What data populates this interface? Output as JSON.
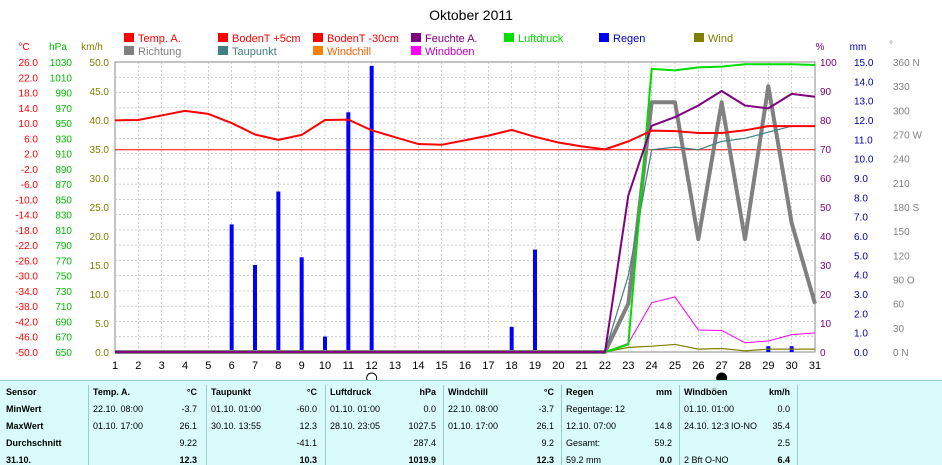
{
  "chart_data": {
    "type": "line",
    "title": "Oktober 2011",
    "x": [
      1,
      2,
      3,
      4,
      5,
      6,
      7,
      8,
      9,
      10,
      11,
      12,
      13,
      14,
      15,
      16,
      17,
      18,
      19,
      20,
      21,
      22,
      23,
      24,
      25,
      26,
      27,
      28,
      29,
      30,
      31
    ],
    "legend": [
      {
        "name": "Temp. A.",
        "color": "#ff0000"
      },
      {
        "name": "BodenT +5cm",
        "color": "#ff0000"
      },
      {
        "name": "BodenT -30cm",
        "color": "#ff0000"
      },
      {
        "name": "Feuchte A.",
        "color": "#800080"
      },
      {
        "name": "Luftdruck",
        "color": "#00dd00"
      },
      {
        "name": "Regen",
        "color": "#0000ff"
      },
      {
        "name": "Wind",
        "color": "#808000"
      },
      {
        "name": "Richtung",
        "color": "#808080"
      },
      {
        "name": "Taupunkt",
        "color": "#408080"
      },
      {
        "name": "Windchill",
        "color": "#ff8000"
      },
      {
        "name": "Windböen",
        "color": "#ff00ff"
      }
    ],
    "axes": {
      "temp": {
        "unit": "°C",
        "color": "#ff0000",
        "ticks": [
          "26.0",
          "22.0",
          "18.0",
          "14.0",
          "10.0",
          "6.0",
          "2.0",
          "-2.0",
          "-6.0",
          "-10.0",
          "-14.0",
          "-18.0",
          "-22.0",
          "-26.0",
          "-30.0",
          "-34.0",
          "-38.0",
          "-42.0",
          "-46.0",
          "-50.0"
        ]
      },
      "press": {
        "unit": "hPa",
        "color": "#00bb00",
        "ticks": [
          "1030",
          "1010",
          "990",
          "970",
          "950",
          "930",
          "910",
          "890",
          "870",
          "850",
          "830",
          "810",
          "790",
          "770",
          "750",
          "730",
          "710",
          "690",
          "670",
          "650"
        ]
      },
      "wind": {
        "unit": "km/h",
        "color": "#808000",
        "ticks": [
          "50.0",
          "45.0",
          "40.0",
          "35.0",
          "30.0",
          "25.0",
          "20.0",
          "15.0",
          "10.0",
          "5.0",
          "0.0"
        ]
      },
      "hum": {
        "unit": "%",
        "color": "#800080",
        "ticks": [
          "100",
          "90",
          "80",
          "70",
          "60",
          "50",
          "40",
          "30",
          "20",
          "10",
          "0"
        ]
      },
      "rain": {
        "unit": "mm",
        "color": "#0000a0",
        "ticks": [
          "15.0",
          "14.0",
          "13.0",
          "12.0",
          "11.0",
          "10.0",
          "9.0",
          "8.0",
          "7.0",
          "6.0",
          "5.0",
          "4.0",
          "3.0",
          "2.0",
          "1.0",
          "0.0"
        ]
      },
      "dir": {
        "unit": "°",
        "color": "#808080",
        "ticks": [
          "360 N",
          "330",
          "300",
          "270 W",
          "240",
          "210",
          "180 S",
          "150",
          "120",
          "90 O",
          "60",
          "30",
          "0 N"
        ]
      }
    },
    "series": [
      {
        "name": "Temp. A.",
        "color": "#ff0000",
        "values": [
          10.7,
          10.8,
          12.0,
          13.2,
          12.4,
          10.0,
          7.0,
          5.6,
          6.9,
          10.8,
          10.9,
          8.1,
          6.3,
          4.5,
          4.3,
          5.5,
          6.7,
          8.2,
          6.4,
          4.9,
          3.9,
          3.1,
          5.2,
          8.0,
          7.9,
          7.4,
          7.4,
          8.1,
          9.2,
          9.2,
          9.2
        ]
      },
      {
        "name": "Feuchte A.",
        "color": "#800080",
        "values": [
          0,
          0,
          0,
          0,
          0,
          0,
          0,
          0,
          0,
          0,
          0,
          0,
          0,
          0,
          0,
          0,
          0,
          0,
          0,
          0,
          0,
          0,
          54,
          78,
          81,
          85,
          90,
          85,
          84,
          89,
          88
        ]
      },
      {
        "name": "Luftdruck",
        "color": "#00dd00",
        "values": [
          650,
          650,
          650,
          650,
          650,
          650,
          650,
          650,
          650,
          650,
          650,
          650,
          650,
          650,
          650,
          650,
          650,
          650,
          650,
          650,
          650,
          650,
          660,
          1021,
          1019,
          1023,
          1024,
          1027,
          1027,
          1027,
          1026
        ]
      },
      {
        "name": "Taupunkt",
        "color": "#408080",
        "values": [
          -50,
          -50,
          -50,
          -50,
          -50,
          -50,
          -50,
          -50,
          -50,
          -50,
          -50,
          -50,
          -50,
          -50,
          -50,
          -50,
          -50,
          -50,
          -50,
          -50,
          -50,
          -50,
          -30,
          3,
          3.7,
          3,
          5.2,
          6.0,
          7.6,
          9.2,
          9.2
        ]
      },
      {
        "name": "Richtung",
        "color": "#808080",
        "values": [
          0,
          0,
          0,
          0,
          0,
          0,
          0,
          0,
          0,
          0,
          0,
          0,
          0,
          0,
          0,
          0,
          0,
          0,
          0,
          0,
          0,
          0,
          60,
          310,
          310,
          140,
          310,
          140,
          330,
          160,
          60
        ]
      },
      {
        "name": "Windböen",
        "color": "#ff00ff",
        "values": [
          0,
          0,
          0,
          0,
          0,
          0,
          0,
          0,
          0,
          0,
          0,
          0,
          0,
          0,
          0,
          0,
          0,
          0,
          0,
          0,
          0,
          0,
          1.5,
          8.5,
          9.5,
          3.8,
          3.7,
          1.6,
          1.9,
          3.0,
          3.3
        ]
      },
      {
        "name": "Wind",
        "color": "#808000",
        "values": [
          0,
          0,
          0,
          0,
          0,
          0,
          0,
          0,
          0,
          0,
          0,
          0,
          0,
          0,
          0,
          0,
          0,
          0,
          0,
          0,
          0,
          0,
          0.8,
          1.0,
          1.3,
          0.5,
          0.6,
          0.2,
          0.5,
          0.5,
          0.5
        ]
      },
      {
        "name": "Regen",
        "color": "#0000ff",
        "bars": [
          {
            "x": 6,
            "v": 6.6
          },
          {
            "x": 7,
            "v": 4.5
          },
          {
            "x": 8,
            "v": 8.3
          },
          {
            "x": 9,
            "v": 4.9
          },
          {
            "x": 10,
            "v": 0.8
          },
          {
            "x": 11,
            "v": 12.4
          },
          {
            "x": 12,
            "v": 14.8
          },
          {
            "x": 18,
            "v": 1.3
          },
          {
            "x": 19,
            "v": 5.3
          },
          {
            "x": 29,
            "v": 0.3
          },
          {
            "x": 30,
            "v": 0.3
          }
        ]
      }
    ],
    "reference_line": {
      "value": "3.0",
      "color": "#ff0000"
    },
    "moon_phases": [
      {
        "x": 12,
        "phase": "full"
      },
      {
        "x": 27,
        "phase": "new"
      }
    ],
    "xlim": [
      1,
      31
    ]
  },
  "table": {
    "row_labels": [
      "Sensor",
      "MinWert",
      "MaxWert",
      "Durchschnitt",
      "31.10."
    ],
    "temp": {
      "title": "Temp. A.",
      "unit": "°C",
      "min_date": "22.10. 08:00",
      "min_val": "-3.7",
      "max_date": "01.10. 17:00",
      "max_val": "26.1",
      "avg": "9.22",
      "last": "12.3"
    },
    "dew": {
      "title": "Taupunkt",
      "unit": "°C",
      "min_date": "01.10. 01:00",
      "min_val": "-60.0",
      "max_date": "30.10. 13:55",
      "max_val": "12.3",
      "avg": "-41.1",
      "last": "10.3"
    },
    "press": {
      "title": "Luftdruck",
      "unit": "hPa",
      "min_date": "01.10. 01:00",
      "min_val": "0.0",
      "max_date": "28.10. 23:05",
      "max_val": "1027.5",
      "avg": "287.4",
      "last": "1019.9"
    },
    "chill": {
      "title": "Windchill",
      "unit": "°C",
      "min_date": "22.10. 08:00",
      "min_val": "-3.7",
      "max_date": "01.10. 17:00",
      "max_val": "26.1",
      "avg": "9.2",
      "last": "12.3"
    },
    "rain": {
      "title": "Regen",
      "unit": "mm",
      "min_label": "Regentage: 12",
      "max_date": "12.10. 07:00",
      "max_val": "14.8",
      "total_label": "Gesamt:",
      "total_val": "59.2",
      "last_date": "59.2 mm",
      "last_val": "0.0"
    },
    "gust": {
      "title": "Windböen",
      "unit": "km/h",
      "min_date": "01.10. 01:00",
      "min_val": "0.0",
      "max_date": "24.10. 12:3",
      "max_dir": "IO-NO",
      "max_val": "35.4",
      "avg": "2.5",
      "last_date": "2 Bft O-NO",
      "last_val": "6.4"
    }
  }
}
